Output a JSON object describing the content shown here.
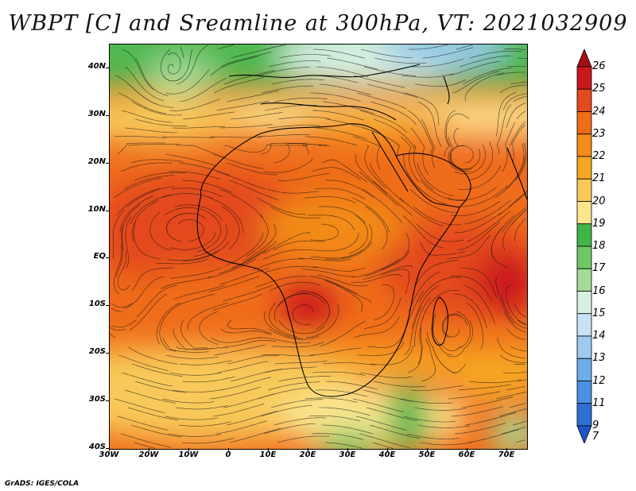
{
  "title": "WBPT [C] and Sreamline at 300hPa, VT: 2021032909",
  "credit": "GrADS: IGES/COLA",
  "map": {
    "lat_labels": [
      "40N",
      "30N",
      "20N",
      "10N",
      "EQ",
      "10S",
      "20S",
      "30S",
      "40S"
    ],
    "lat_values": [
      40,
      30,
      20,
      10,
      0,
      -10,
      -20,
      -30,
      -40
    ],
    "lon_labels": [
      "30W",
      "20W",
      "10W",
      "0",
      "10E",
      "20E",
      "30E",
      "40E",
      "50E",
      "60E",
      "70E"
    ],
    "lon_values": [
      -30,
      -20,
      -10,
      0,
      10,
      20,
      30,
      40,
      50,
      60,
      70
    ],
    "lon_range": [
      -30,
      75
    ],
    "lat_range": [
      -40,
      45
    ]
  },
  "colorbar": {
    "labels": [
      "26",
      "25",
      "24",
      "23",
      "22",
      "21",
      "20",
      "19",
      "18",
      "17",
      "16",
      "15",
      "14",
      "13",
      "12",
      "11",
      "9",
      "7"
    ],
    "colors": [
      "#a50f15",
      "#cb181d",
      "#e34a1f",
      "#ef6c1a",
      "#f28b18",
      "#f6a623",
      "#f8c95a",
      "#fbe68e",
      "#42b549",
      "#6fc866",
      "#a2dc96",
      "#d6f1e3",
      "#c7e2f4",
      "#9ccbee",
      "#6cadea",
      "#4b8fe2",
      "#2f70d6",
      "#1c55c8"
    ]
  }
}
